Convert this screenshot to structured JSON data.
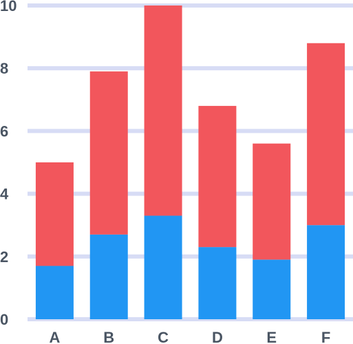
{
  "chart_data": {
    "type": "bar",
    "stacked": true,
    "categories": [
      "A",
      "B",
      "C",
      "D",
      "E",
      "F"
    ],
    "series": [
      {
        "values": [
          1.7,
          2.7,
          3.3,
          2.3,
          1.9,
          3.0
        ],
        "color": "#2196f3"
      },
      {
        "values": [
          3.3,
          5.2,
          6.7,
          4.5,
          3.7,
          5.8
        ],
        "color": "#f2565c"
      }
    ],
    "ylim": [
      0,
      10
    ],
    "yticks": [
      "0",
      "2",
      "4",
      "6",
      "8",
      "10"
    ],
    "gridlines": true,
    "gridline_color": "#d7dcf5",
    "title": "",
    "xlabel": "",
    "ylabel": ""
  }
}
